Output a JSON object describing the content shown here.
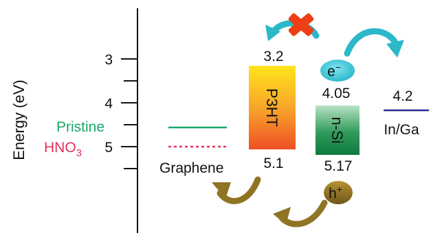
{
  "axis": {
    "label": "Energy (eV)",
    "ticks": [
      {
        "major": true,
        "label": "3"
      },
      {
        "major": false,
        "label": ""
      },
      {
        "major": true,
        "label": "4"
      },
      {
        "major": false,
        "label": ""
      },
      {
        "major": true,
        "label": "5"
      },
      {
        "major": false,
        "label": ""
      }
    ]
  },
  "legend": {
    "pristine": "Pristine",
    "hno3_main": "HNO",
    "hno3_sub": "3"
  },
  "materials": {
    "graphene": {
      "label": "Graphene"
    },
    "p3ht": {
      "label": "P3HT",
      "top_value": "3.2",
      "bottom_value": "5.1"
    },
    "nsi": {
      "label": "n-Si",
      "top_value": "4.05",
      "bottom_value": "5.17"
    },
    "ingaa": {
      "label": "In/Ga",
      "value": "4.2"
    }
  },
  "carriers": {
    "electron_main": "e",
    "electron_sup": "−",
    "hole_main": "h",
    "hole_sup": "+"
  },
  "colors": {
    "pristine": "#1aa86a",
    "hno3": "#e0305a",
    "ingaa_line": "#2b2b8f",
    "electron": "#33c4d4",
    "electron_arrow": "#2bb8c8",
    "hole": "#8f7424",
    "blocked": "#ee3e16"
  },
  "icons": {
    "blocked": "cross-icon",
    "electron_transfer": "curved-arrow-icon",
    "hole_transfer": "curved-arrow-icon"
  }
}
